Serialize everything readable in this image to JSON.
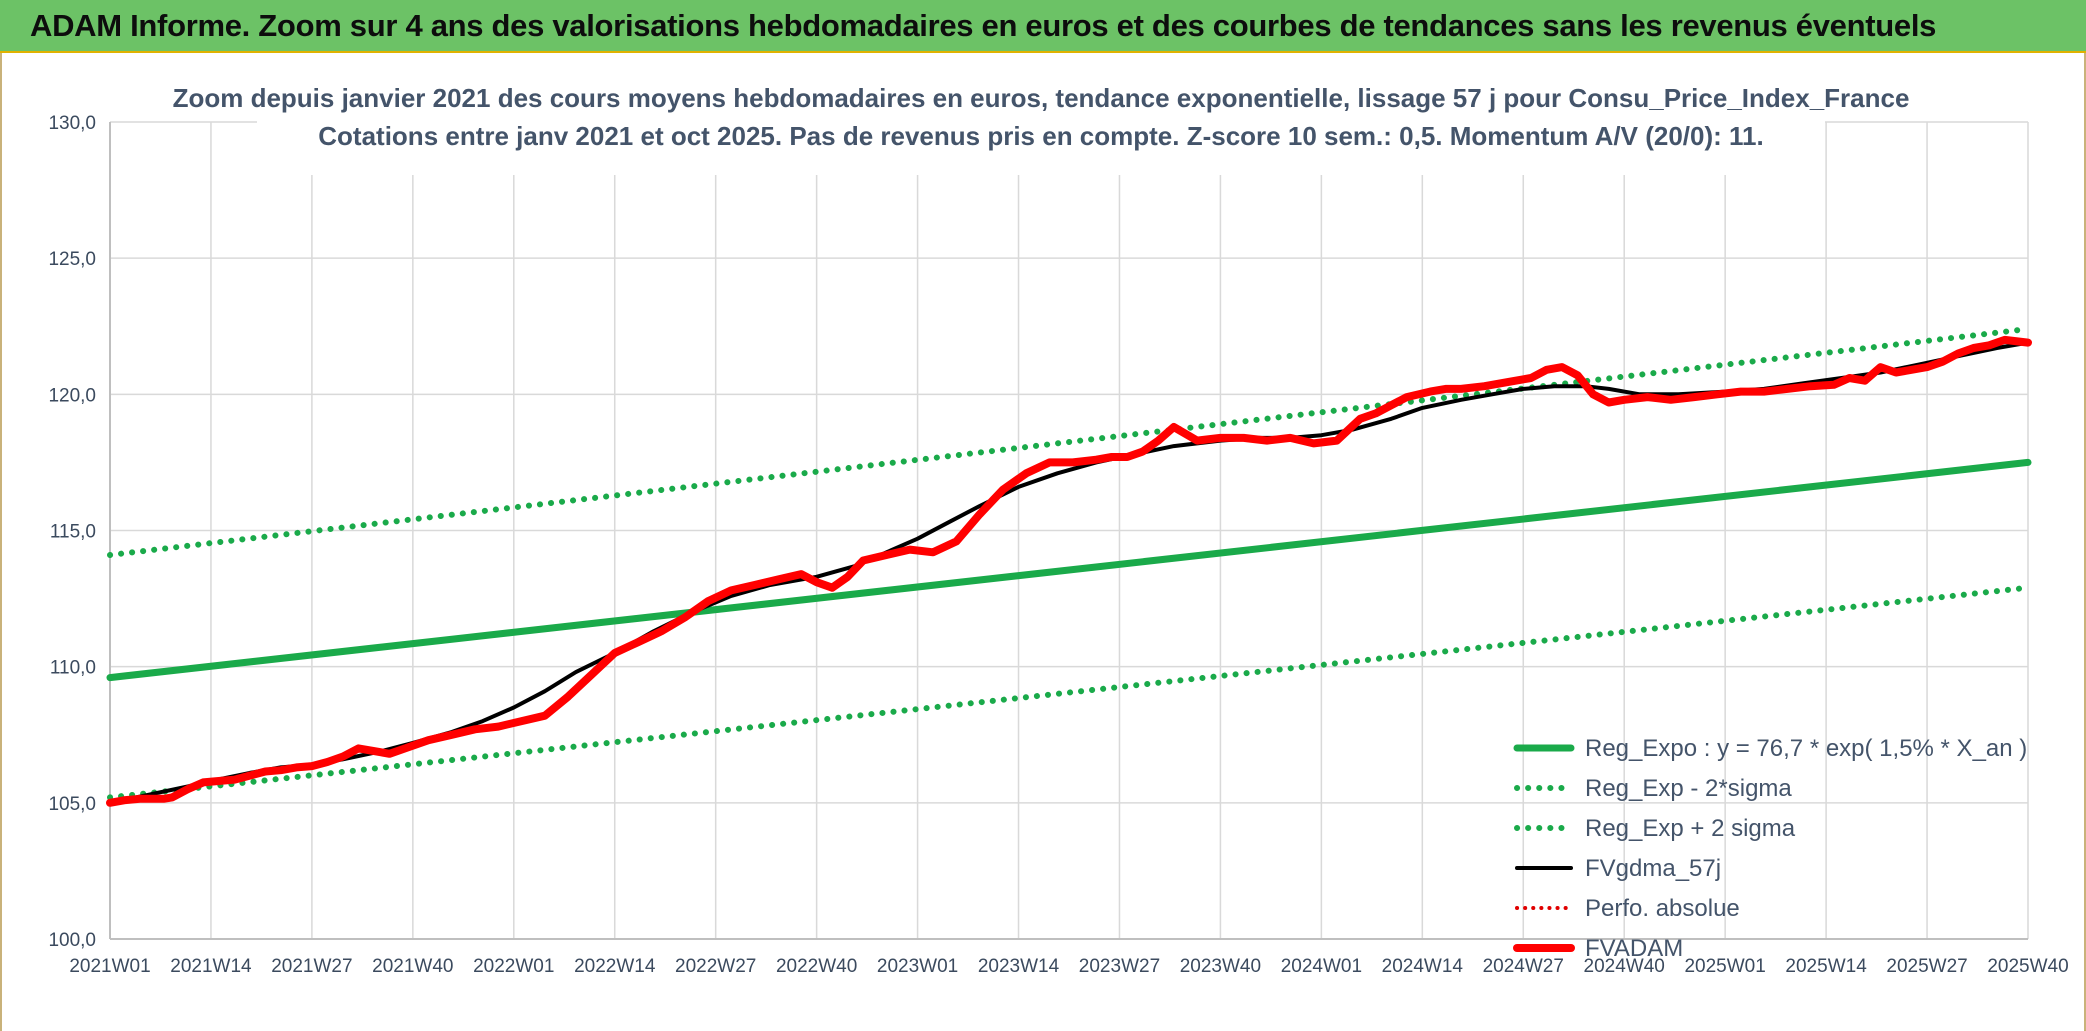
{
  "banner": {
    "title": "ADAM Informe. Zoom sur 4 ans des valorisations hebdomadaires en euros et des courbes de tendances sans les revenus éventuels"
  },
  "colors": {
    "banner_bg": "#6cc266",
    "reg_expo": "#1aaa4a",
    "sigma_bands": "#1aaa4a",
    "fvgdma": "#000000",
    "perfo": "#e00000",
    "fvadam": "#ff0000",
    "grid": "#d9d9d9"
  },
  "chart_data": {
    "type": "line",
    "title_line1": "Zoom depuis janvier 2021 des cours moyens hebdomadaires en euros, tendance exponentielle, lissage 57 j pour Consu_Price_Index_France",
    "title_line2": "Cotations entre janv 2021 et oct 2025. Pas de revenus pris en compte. Z-score 10 sem.: 0,5. Momentum A/V (20/0): 11.",
    "xlabel": "",
    "ylabel": "",
    "x_range": [
      0,
      247
    ],
    "ylim": [
      100,
      130
    ],
    "y_ticks": [
      "100,0",
      "105,0",
      "110,0",
      "115,0",
      "120,0",
      "125,0",
      "130,0"
    ],
    "x_tick_labels": [
      "2021W01",
      "2021W14",
      "2021W27",
      "2021W40",
      "2022W01",
      "2022W14",
      "2022W27",
      "2022W40",
      "2023W01",
      "2023W14",
      "2023W27",
      "2023W40",
      "2024W01",
      "2024W14",
      "2024W27",
      "2024W40",
      "2025W01",
      "2025W14",
      "2025W27",
      "2025W40"
    ],
    "x_tick_positions": [
      0,
      13,
      26,
      39,
      52,
      65,
      78,
      91,
      104,
      117,
      130,
      143,
      156,
      169,
      182,
      195,
      208,
      221,
      234,
      247
    ],
    "legend": {
      "placement": "right-bottom",
      "entries": [
        {
          "key": "reg_expo",
          "label": "Reg_Expo : y = 76,7 * exp( 1,5% *  X_an )"
        },
        {
          "key": "reg_minus",
          "label": "Reg_Exp - 2*sigma"
        },
        {
          "key": "reg_plus",
          "label": "Reg_Exp + 2 sigma"
        },
        {
          "key": "fvgdma",
          "label": "FVgdma_57j"
        },
        {
          "key": "perfo",
          "label": "Perfo. absolue"
        },
        {
          "key": "fvadam",
          "label": "FVADAM"
        }
      ]
    },
    "series": [
      {
        "key": "reg_expo",
        "name": "Reg_Expo",
        "style": "solid",
        "x": [
          0,
          247
        ],
        "values": [
          109.6,
          117.5
        ]
      },
      {
        "key": "reg_minus",
        "name": "Reg_Exp - 2*sigma",
        "style": "dotted",
        "x": [
          0,
          247
        ],
        "values": [
          105.2,
          112.9
        ]
      },
      {
        "key": "reg_plus",
        "name": "Reg_Exp + 2 sigma",
        "style": "dotted",
        "x": [
          0,
          247
        ],
        "values": [
          114.1,
          122.4
        ]
      },
      {
        "key": "fvgdma",
        "name": "FVgdma_57j",
        "style": "solid",
        "x": [
          0,
          5,
          10,
          13,
          18,
          22,
          26,
          30,
          35,
          39,
          44,
          48,
          52,
          56,
          60,
          65,
          70,
          75,
          80,
          85,
          91,
          96,
          100,
          104,
          108,
          112,
          117,
          122,
          127,
          132,
          137,
          143,
          148,
          152,
          156,
          160,
          165,
          169,
          174,
          178,
          182,
          186,
          190,
          193,
          197,
          202,
          208,
          213,
          218,
          223,
          228,
          233,
          238,
          243,
          247
        ],
        "values": [
          105.0,
          105.3,
          105.6,
          105.8,
          106.1,
          106.3,
          106.4,
          106.6,
          106.9,
          107.2,
          107.6,
          108.0,
          108.5,
          109.1,
          109.8,
          110.5,
          111.3,
          112.0,
          112.6,
          113.0,
          113.3,
          113.7,
          114.2,
          114.7,
          115.3,
          115.9,
          116.6,
          117.1,
          117.5,
          117.8,
          118.1,
          118.3,
          118.4,
          118.4,
          118.5,
          118.7,
          119.1,
          119.5,
          119.8,
          120.0,
          120.2,
          120.3,
          120.3,
          120.2,
          120.0,
          120.0,
          120.1,
          120.2,
          120.4,
          120.6,
          120.8,
          121.1,
          121.4,
          121.7,
          121.9
        ]
      },
      {
        "key": "fvadam",
        "name": "FVADAM",
        "style": "solid",
        "x": [
          0,
          2,
          4,
          7,
          8,
          10,
          12,
          14,
          16,
          18,
          20,
          22,
          24,
          26,
          28,
          30,
          32,
          34,
          36,
          38,
          41,
          44,
          47,
          50,
          53,
          56,
          59,
          62,
          65,
          68,
          71,
          74,
          77,
          80,
          83,
          86,
          89,
          91,
          93,
          95,
          97,
          100,
          103,
          106,
          109,
          112,
          115,
          118,
          121,
          124,
          127,
          129,
          131,
          133,
          135,
          137,
          140,
          143,
          146,
          149,
          152,
          155,
          158,
          161,
          163,
          165,
          167,
          170,
          172,
          174,
          177,
          180,
          183,
          185,
          187,
          189,
          191,
          193,
          195,
          198,
          201,
          204,
          207,
          210,
          213,
          216,
          219,
          222,
          224,
          226,
          228,
          230,
          232,
          234,
          236,
          238,
          240,
          242,
          244,
          247
        ],
        "values": [
          105.0,
          105.1,
          105.15,
          105.15,
          105.2,
          105.5,
          105.75,
          105.8,
          105.85,
          106.0,
          106.15,
          106.2,
          106.3,
          106.35,
          106.5,
          106.7,
          107.0,
          106.9,
          106.8,
          107.0,
          107.3,
          107.5,
          107.7,
          107.8,
          108.0,
          108.2,
          108.9,
          109.7,
          110.5,
          110.9,
          111.3,
          111.8,
          112.4,
          112.8,
          113.0,
          113.2,
          113.4,
          113.1,
          112.9,
          113.3,
          113.9,
          114.1,
          114.3,
          114.2,
          114.6,
          115.6,
          116.5,
          117.1,
          117.5,
          117.5,
          117.6,
          117.7,
          117.7,
          117.9,
          118.3,
          118.8,
          118.3,
          118.4,
          118.4,
          118.3,
          118.4,
          118.2,
          118.3,
          119.1,
          119.3,
          119.6,
          119.9,
          120.1,
          120.2,
          120.2,
          120.3,
          120.45,
          120.6,
          120.9,
          121.0,
          120.7,
          120.0,
          119.7,
          119.8,
          119.9,
          119.8,
          119.9,
          120.0,
          120.1,
          120.1,
          120.2,
          120.3,
          120.35,
          120.6,
          120.5,
          121.0,
          120.8,
          120.9,
          121.0,
          121.2,
          121.5,
          121.7,
          121.8,
          122.0,
          121.9
        ]
      },
      {
        "key": "perfo",
        "name": "Perfo. absolue",
        "style": "dotted",
        "x": [],
        "values": []
      }
    ]
  }
}
